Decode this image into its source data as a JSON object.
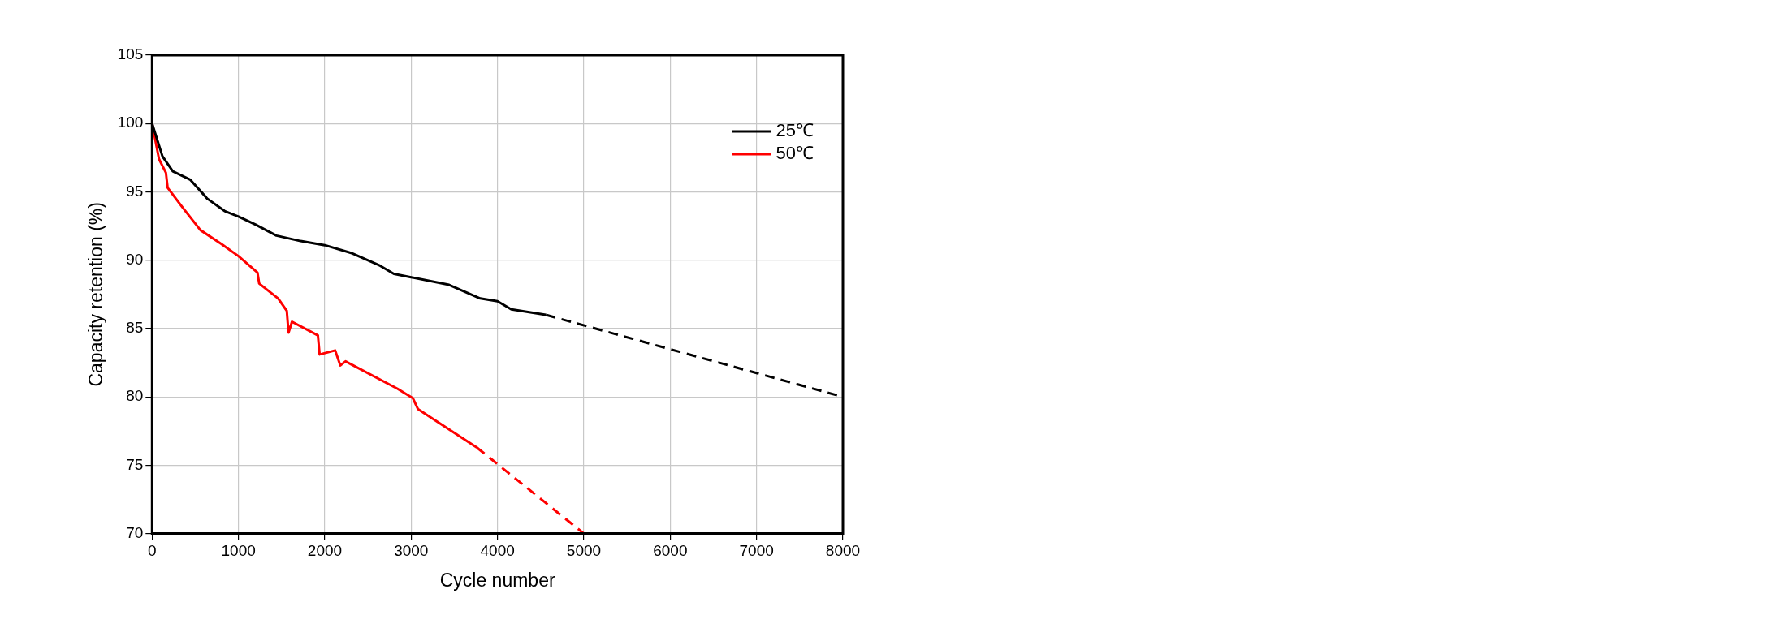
{
  "chart_data": {
    "type": "line",
    "xlabel": "Cycle number",
    "ylabel": "Capacity retention (%)",
    "xlim": [
      0,
      8000
    ],
    "xticks": [
      0,
      1000,
      2000,
      3000,
      4000,
      5000,
      6000,
      7000,
      8000
    ],
    "ylim": [
      70,
      105
    ],
    "yticks": [
      70,
      75,
      80,
      85,
      90,
      95,
      100,
      105
    ],
    "grid": true,
    "legend": "top right",
    "marker": "none",
    "series": [
      {
        "name": "25℃",
        "color": "#000000",
        "line_style": "solid",
        "x": [
          0,
          120,
          240,
          440,
          640,
          840,
          1000,
          1200,
          1440,
          1720,
          2000,
          2320,
          2640,
          2800,
          3000,
          3440,
          3800,
          4000,
          4160,
          4560
        ],
        "values": [
          100,
          97.6,
          96.5,
          95.9,
          94.5,
          93.6,
          93.2,
          92.6,
          91.8,
          91.4,
          91.1,
          90.5,
          89.6,
          89.0,
          88.75,
          88.2,
          87.2,
          87.0,
          86.4,
          86.0
        ]
      },
      {
        "name": "50℃",
        "color": "#ff0000",
        "line_style": "solid",
        "x": [
          0,
          80,
          160,
          180,
          360,
          560,
          800,
          1000,
          1220,
          1240,
          1460,
          1560,
          1580,
          1620,
          1920,
          1940,
          2120,
          2180,
          2240,
          2840,
          3020,
          3080,
          3760
        ],
        "values": [
          100,
          97.4,
          96.4,
          95.3,
          93.8,
          92.2,
          91.2,
          90.3,
          89.1,
          88.3,
          87.2,
          86.3,
          84.7,
          85.5,
          84.5,
          83.1,
          83.4,
          82.3,
          82.6,
          80.6,
          79.9,
          79.1,
          76.3
        ]
      },
      {
        "color": "#000000",
        "line_style": "dashed",
        "x": [
          4560,
          8000
        ],
        "values": [
          86,
          80
        ]
      },
      {
        "color": "#ff0000",
        "line_style": "dashed",
        "x": [
          3760,
          5000
        ],
        "values": [
          76.3,
          70
        ]
      }
    ]
  }
}
